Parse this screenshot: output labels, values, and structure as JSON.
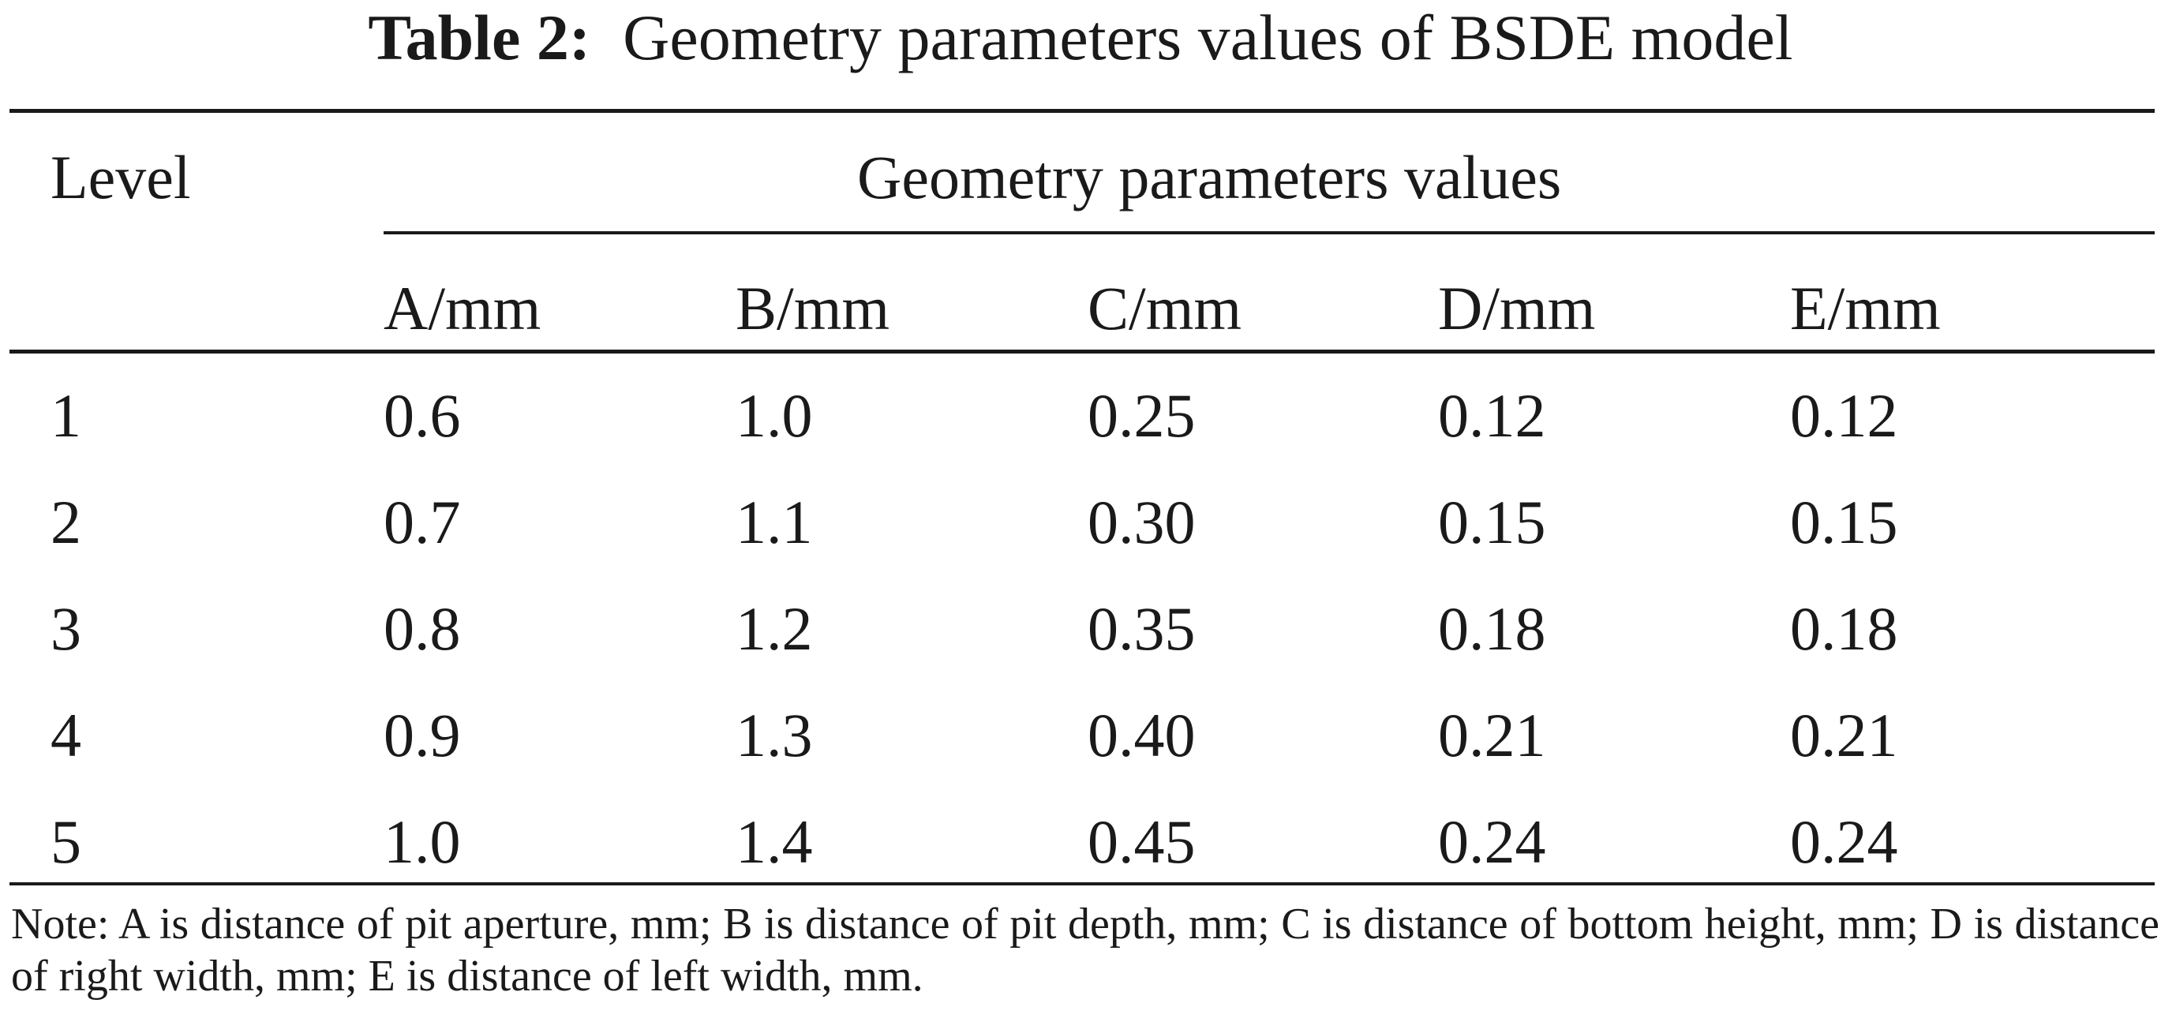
{
  "caption": {
    "label": "Table 2:",
    "text": "Geometry parameters values of BSDE model"
  },
  "table": {
    "row_header": "Level",
    "group_header": "Geometry parameters values",
    "columns": [
      "A/mm",
      "B/mm",
      "C/mm",
      "D/mm",
      "E/mm"
    ],
    "rows": [
      {
        "level": "1",
        "values": [
          "0.6",
          "1.0",
          "0.25",
          "0.12",
          "0.12"
        ]
      },
      {
        "level": "2",
        "values": [
          "0.7",
          "1.1",
          "0.30",
          "0.15",
          "0.15"
        ]
      },
      {
        "level": "3",
        "values": [
          "0.8",
          "1.2",
          "0.35",
          "0.18",
          "0.18"
        ]
      },
      {
        "level": "4",
        "values": [
          "0.9",
          "1.3",
          "0.40",
          "0.21",
          "0.21"
        ]
      },
      {
        "level": "5",
        "values": [
          "1.0",
          "1.4",
          "0.45",
          "0.24",
          "0.24"
        ]
      }
    ]
  },
  "note": "Note: A is distance of pit aperture, mm; B is distance of pit depth, mm; C is distance of bottom height, mm; D is distance of right width, mm; E is distance of left width, mm."
}
